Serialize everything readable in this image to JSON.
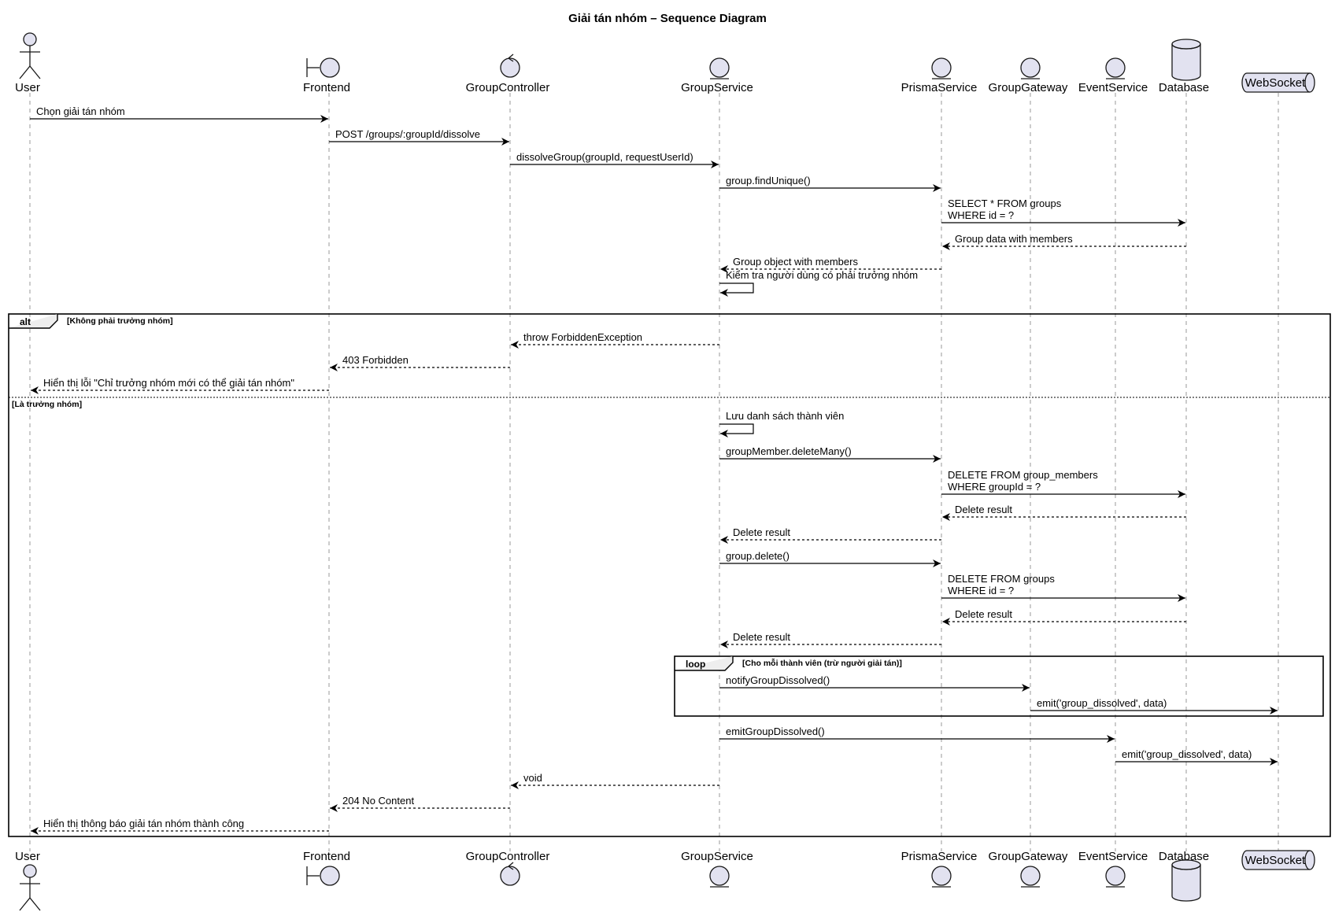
{
  "diagram": {
    "title": "Giải tán nhóm – Sequence Diagram",
    "participants": [
      {
        "id": "user",
        "name": "User",
        "kind": "actor"
      },
      {
        "id": "frontend",
        "name": "Frontend",
        "kind": "boundary"
      },
      {
        "id": "controller",
        "name": "GroupController",
        "kind": "control"
      },
      {
        "id": "service",
        "name": "GroupService",
        "kind": "entity"
      },
      {
        "id": "prisma",
        "name": "PrismaService",
        "kind": "entity"
      },
      {
        "id": "gateway",
        "name": "GroupGateway",
        "kind": "entity"
      },
      {
        "id": "event",
        "name": "EventService",
        "kind": "entity"
      },
      {
        "id": "database",
        "name": "Database",
        "kind": "database"
      },
      {
        "id": "websocket",
        "name": "WebSocket",
        "kind": "queue"
      }
    ],
    "messages": [
      {
        "from": "user",
        "to": "frontend",
        "lines": [
          "Chọn giải tán nhóm"
        ],
        "dashed": false
      },
      {
        "from": "frontend",
        "to": "controller",
        "lines": [
          "POST /groups/:groupId/dissolve"
        ],
        "dashed": false
      },
      {
        "from": "controller",
        "to": "service",
        "lines": [
          "dissolveGroup(groupId, requestUserId)"
        ],
        "dashed": false
      },
      {
        "from": "service",
        "to": "prisma",
        "lines": [
          "group.findUnique()"
        ],
        "dashed": false
      },
      {
        "from": "prisma",
        "to": "database",
        "lines": [
          "SELECT * FROM groups",
          "WHERE id = ?"
        ],
        "dashed": false
      },
      {
        "from": "database",
        "to": "prisma",
        "lines": [
          "Group data with members"
        ],
        "dashed": true
      },
      {
        "from": "prisma",
        "to": "service",
        "lines": [
          "Group object with members"
        ],
        "dashed": true
      },
      {
        "from": "service",
        "to": "service",
        "lines": [
          "Kiểm tra người dùng có phải trưởng nhóm"
        ],
        "dashed": false
      },
      {
        "from": "service",
        "to": "controller",
        "lines": [
          "throw ForbiddenException"
        ],
        "dashed": true
      },
      {
        "from": "controller",
        "to": "frontend",
        "lines": [
          "403 Forbidden"
        ],
        "dashed": true
      },
      {
        "from": "frontend",
        "to": "user",
        "lines": [
          "Hiển thị lỗi \"Chỉ trưởng nhóm mới có thể giải tán nhóm\""
        ],
        "dashed": true
      },
      {
        "from": "service",
        "to": "service",
        "lines": [
          "Lưu danh sách thành viên"
        ],
        "dashed": false
      },
      {
        "from": "service",
        "to": "prisma",
        "lines": [
          "groupMember.deleteMany()"
        ],
        "dashed": false
      },
      {
        "from": "prisma",
        "to": "database",
        "lines": [
          "DELETE FROM group_members",
          "WHERE groupId = ?"
        ],
        "dashed": false
      },
      {
        "from": "database",
        "to": "prisma",
        "lines": [
          "Delete result"
        ],
        "dashed": true
      },
      {
        "from": "prisma",
        "to": "service",
        "lines": [
          "Delete result"
        ],
        "dashed": true
      },
      {
        "from": "service",
        "to": "prisma",
        "lines": [
          "group.delete()"
        ],
        "dashed": false
      },
      {
        "from": "prisma",
        "to": "database",
        "lines": [
          "DELETE FROM groups",
          "WHERE id = ?"
        ],
        "dashed": false
      },
      {
        "from": "database",
        "to": "prisma",
        "lines": [
          "Delete result"
        ],
        "dashed": true
      },
      {
        "from": "prisma",
        "to": "service",
        "lines": [
          "Delete result"
        ],
        "dashed": true
      },
      {
        "from": "service",
        "to": "gateway",
        "lines": [
          "notifyGroupDissolved()"
        ],
        "dashed": false
      },
      {
        "from": "gateway",
        "to": "websocket",
        "lines": [
          "emit('group_dissolved', data)"
        ],
        "dashed": false
      },
      {
        "from": "service",
        "to": "event",
        "lines": [
          "emitGroupDissolved()"
        ],
        "dashed": false
      },
      {
        "from": "event",
        "to": "websocket",
        "lines": [
          "emit('group_dissolved', data)"
        ],
        "dashed": false
      },
      {
        "from": "service",
        "to": "controller",
        "lines": [
          "void"
        ],
        "dashed": true
      },
      {
        "from": "controller",
        "to": "frontend",
        "lines": [
          "204 No Content"
        ],
        "dashed": true
      },
      {
        "from": "frontend",
        "to": "user",
        "lines": [
          "Hiển thị thông báo giải tán nhóm thành công"
        ],
        "dashed": true
      }
    ],
    "fragments": [
      {
        "kind": "alt",
        "guard": "[Không phải trưởng nhóm]",
        "else_guard": "[Là trưởng nhóm]"
      },
      {
        "kind": "loop",
        "guard": "[Cho mỗi thành viên (trừ người giải tán)]"
      }
    ]
  }
}
